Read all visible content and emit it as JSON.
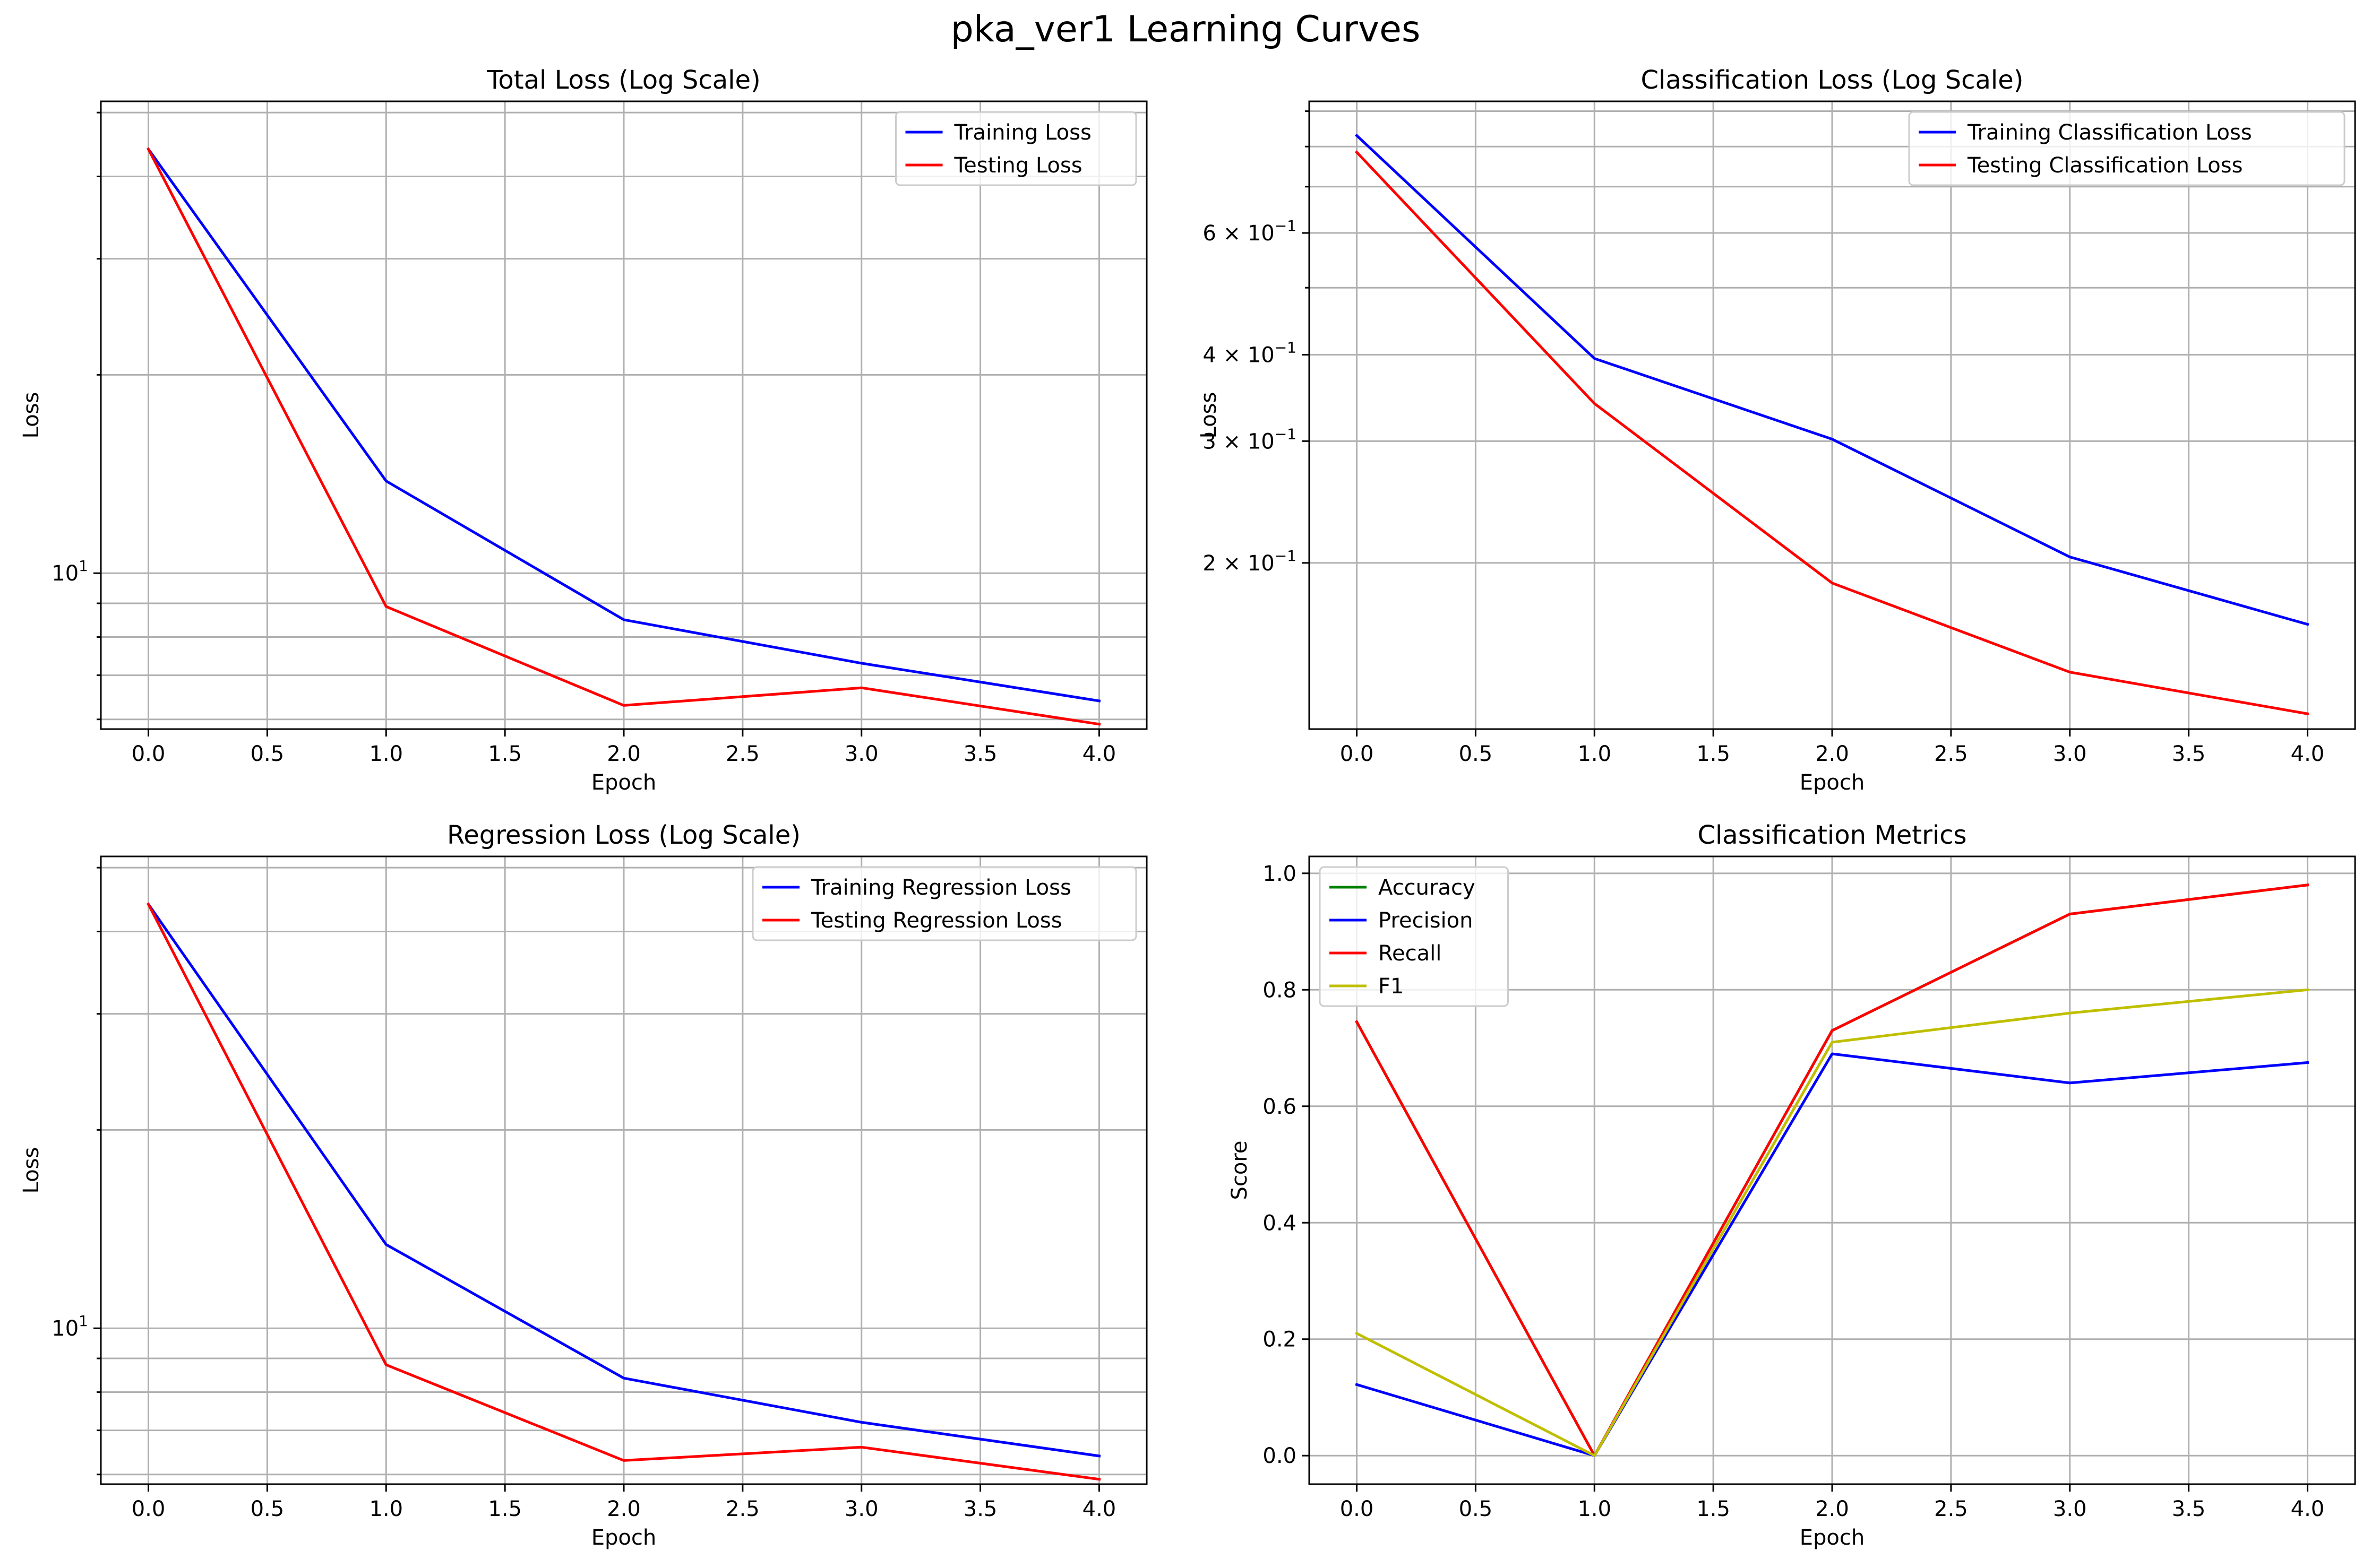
{
  "chart_data": {
    "title": "pka_ver1 Learning Curves",
    "charts": [
      {
        "type": "line",
        "title": "Total Loss (Log Scale)",
        "xlabel": "Epoch",
        "ylabel": "Loss",
        "yscale": "log",
        "xlim": [
          -0.2,
          4.2
        ],
        "ylim": [
          5.8,
          52
        ],
        "xticks": [
          "0.0",
          "0.5",
          "1.0",
          "1.5",
          "2.0",
          "2.5",
          "3.0",
          "3.5",
          "4.0"
        ],
        "yticks": [
          {
            "value": 10,
            "label": "10",
            "exp": "1"
          }
        ],
        "legend": "top-right",
        "grid": true,
        "x": [
          0,
          1,
          2,
          3,
          4
        ],
        "series": [
          {
            "name": "Training Loss",
            "color": "#0000ff",
            "values": [
              44.0,
              13.8,
              8.5,
              7.3,
              6.4
            ]
          },
          {
            "name": "Testing Loss",
            "color": "#ff0000",
            "values": [
              44.0,
              8.9,
              6.3,
              6.7,
              5.9
            ]
          }
        ]
      },
      {
        "type": "line",
        "title": "Classification Loss (Log Scale)",
        "xlabel": "Epoch",
        "ylabel": "Loss",
        "yscale": "log",
        "xlim": [
          -0.2,
          4.2
        ],
        "ylim": [
          0.115,
          0.93
        ],
        "xticks": [
          "0.0",
          "0.5",
          "1.0",
          "1.5",
          "2.0",
          "2.5",
          "3.0",
          "3.5",
          "4.0"
        ],
        "yticks": [
          {
            "value": 0.2,
            "label": "2 × 10",
            "exp": "−1"
          },
          {
            "value": 0.3,
            "label": "3 × 10",
            "exp": "−1"
          },
          {
            "value": 0.4,
            "label": "4 × 10",
            "exp": "−1"
          },
          {
            "value": 0.6,
            "label": "6 × 10",
            "exp": "−1"
          }
        ],
        "legend": "top-right",
        "grid": true,
        "x": [
          0,
          1,
          2,
          3,
          4
        ],
        "series": [
          {
            "name": "Training Classification Loss",
            "color": "#0000ff",
            "values": [
              0.83,
              0.395,
              0.302,
              0.204,
              0.163
            ]
          },
          {
            "name": "Testing Classification Loss",
            "color": "#ff0000",
            "values": [
              0.785,
              0.34,
              0.187,
              0.139,
              0.121
            ]
          }
        ]
      },
      {
        "type": "line",
        "title": "Regression Loss (Log Scale)",
        "xlabel": "Epoch",
        "ylabel": "Loss",
        "yscale": "log",
        "xlim": [
          -0.2,
          4.2
        ],
        "ylim": [
          5.8,
          52
        ],
        "xticks": [
          "0.0",
          "0.5",
          "1.0",
          "1.5",
          "2.0",
          "2.5",
          "3.0",
          "3.5",
          "4.0"
        ],
        "yticks": [
          {
            "value": 10,
            "label": "10",
            "exp": "1"
          }
        ],
        "legend": "top-right",
        "grid": true,
        "x": [
          0,
          1,
          2,
          3,
          4
        ],
        "series": [
          {
            "name": "Training Regression Loss",
            "color": "#0000ff",
            "values": [
              44.0,
              13.4,
              8.4,
              7.2,
              6.4
            ]
          },
          {
            "name": "Testing Regression Loss",
            "color": "#ff0000",
            "values": [
              44.0,
              8.8,
              6.3,
              6.6,
              5.9
            ]
          }
        ]
      },
      {
        "type": "line",
        "title": "Classification Metrics",
        "xlabel": "Epoch",
        "ylabel": "Score",
        "yscale": "linear",
        "xlim": [
          -0.2,
          4.2
        ],
        "ylim": [
          -0.049,
          1.029
        ],
        "xticks": [
          "0.0",
          "0.5",
          "1.0",
          "1.5",
          "2.0",
          "2.5",
          "3.0",
          "3.5",
          "4.0"
        ],
        "yticks": [
          {
            "value": 0.0,
            "label": "0.0"
          },
          {
            "value": 0.2,
            "label": "0.2"
          },
          {
            "value": 0.4,
            "label": "0.4"
          },
          {
            "value": 0.6,
            "label": "0.6"
          },
          {
            "value": 0.8,
            "label": "0.8"
          },
          {
            "value": 1.0,
            "label": "1.0"
          }
        ],
        "legend": "top-left",
        "grid": true,
        "x": [
          0,
          1,
          2,
          3,
          4
        ],
        "series": [
          {
            "name": "Accuracy",
            "color": "#008000",
            "values": [
              0.745,
              0.0,
              0.73,
              0.93,
              0.98
            ]
          },
          {
            "name": "Precision",
            "color": "#0000ff",
            "values": [
              0.122,
              0.0,
              0.69,
              0.64,
              0.675
            ]
          },
          {
            "name": "Recall",
            "color": "#ff0000",
            "values": [
              0.745,
              0.0,
              0.73,
              0.93,
              0.98
            ]
          },
          {
            "name": "F1",
            "color": "#bfbf00",
            "values": [
              0.21,
              0.0,
              0.71,
              0.76,
              0.8
            ]
          }
        ]
      }
    ]
  }
}
